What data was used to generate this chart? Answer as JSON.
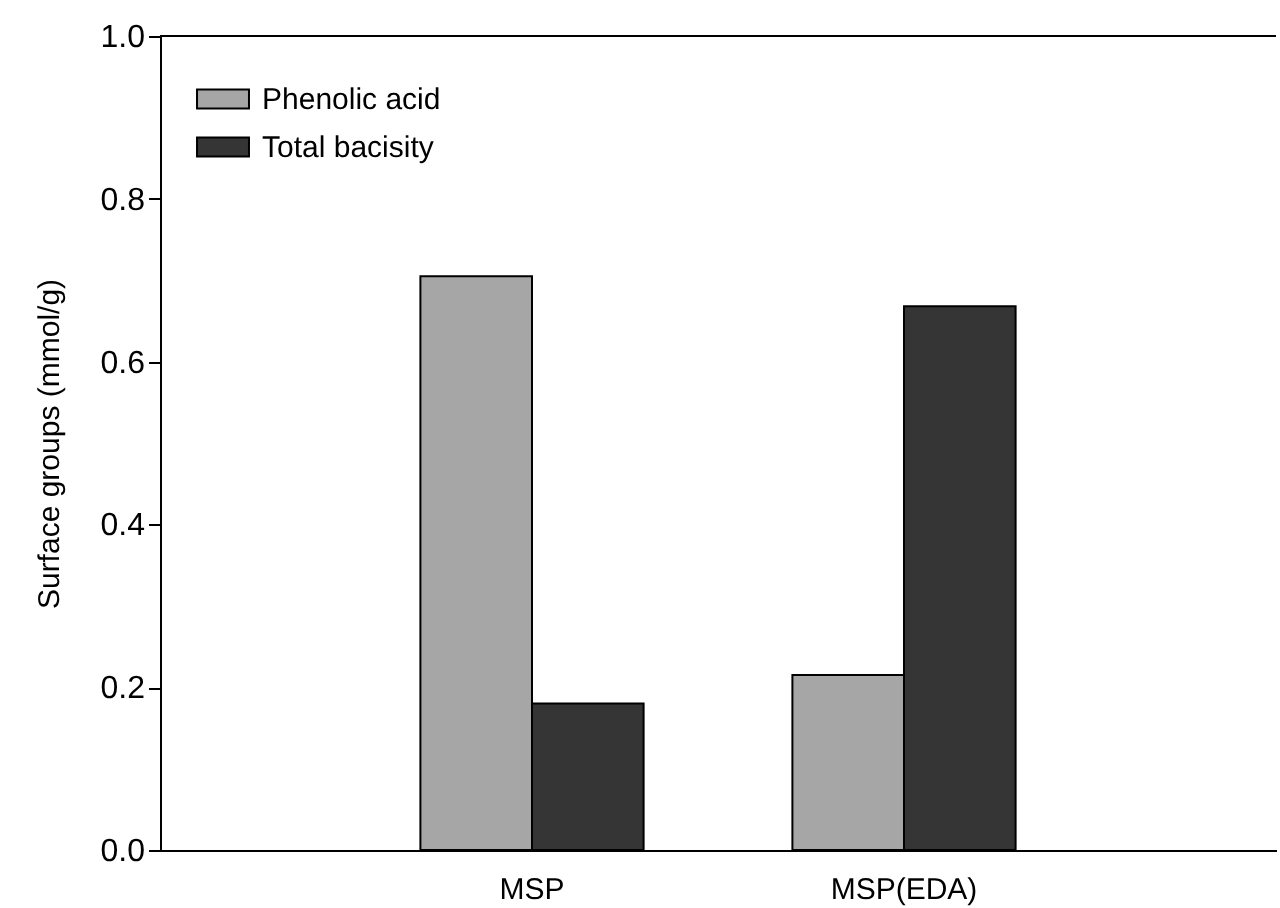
{
  "chart_data": {
    "type": "bar",
    "ylabel": "Surface groups (mmol/g)",
    "categories": [
      "MSP",
      "MSP(EDA)"
    ],
    "series": [
      {
        "name": "Phenolic acid",
        "color": "#a6a6a6",
        "values": [
          0.705,
          0.215
        ]
      },
      {
        "name": "Total bacisity",
        "color": "#353535",
        "values": [
          0.18,
          0.668
        ]
      }
    ],
    "ylim": [
      0,
      1
    ],
    "yticks": [
      {
        "value": 0,
        "label": "0.0"
      },
      {
        "value": 0.2,
        "label": "0.2"
      },
      {
        "value": 0.4,
        "label": "0.4"
      },
      {
        "value": 0.6,
        "label": "0.6"
      },
      {
        "value": 0.8,
        "label": "0.8"
      },
      {
        "value": 1,
        "label": "1.0"
      }
    ],
    "legend": "top left",
    "grid": false
  }
}
